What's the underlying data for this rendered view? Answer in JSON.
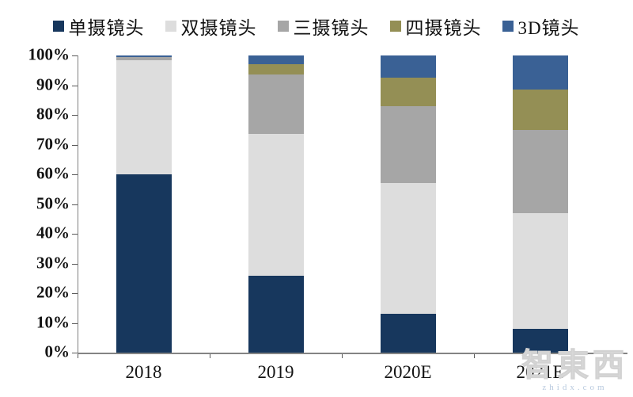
{
  "chart_data": {
    "type": "bar",
    "stacked": true,
    "title": "",
    "xlabel": "",
    "ylabel": "",
    "categories": [
      "2018",
      "2019",
      "2020E",
      "2021E"
    ],
    "series": [
      {
        "name": "单摄镜头",
        "color": "#17375D",
        "values": [
          60,
          26,
          13,
          8
        ]
      },
      {
        "name": "双摄镜头",
        "color": "#DDDDDD",
        "values": [
          38.5,
          47.5,
          44,
          39
        ]
      },
      {
        "name": "三摄镜头",
        "color": "#A6A6A6",
        "values": [
          1,
          20,
          26,
          28
        ]
      },
      {
        "name": "四摄镜头",
        "color": "#948F55",
        "values": [
          0,
          3.5,
          9.5,
          13.5
        ]
      },
      {
        "name": "3D镜头",
        "color": "#3A6195",
        "values": [
          0.5,
          3,
          7.5,
          11.5
        ]
      }
    ],
    "ylim": [
      0,
      100
    ],
    "ytick_step": 10,
    "ytick_labels": [
      "0%",
      "10%",
      "20%",
      "30%",
      "40%",
      "50%",
      "60%",
      "70%",
      "80%",
      "90%",
      "100%"
    ],
    "legend_position": "top",
    "grid": false
  },
  "watermark": {
    "text": "智東西",
    "subtext": "zhidx.com"
  }
}
